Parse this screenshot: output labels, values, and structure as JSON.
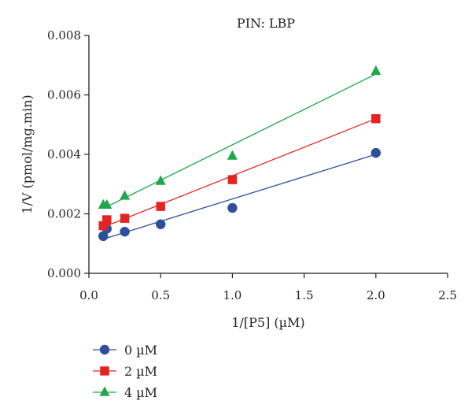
{
  "chart_data": {
    "type": "scatter",
    "title": "PIN: LBP",
    "xlabel": "1/[P5] (µM)",
    "ylabel": "1/V (pmol/mg.min)",
    "xlim": [
      0.0,
      2.5
    ],
    "ylim": [
      0.0,
      0.008
    ],
    "x_ticks": [
      "0.0",
      "0.5",
      "1.0",
      "1.5",
      "2.0",
      "2.5"
    ],
    "y_ticks": [
      "0.000",
      "0.002",
      "0.004",
      "0.006",
      "0.008"
    ],
    "grid": false,
    "legend_position": "bottom-left",
    "series": [
      {
        "name": "0 µM",
        "color": "#2e4f9e",
        "marker": "circle",
        "x": [
          0.1,
          0.125,
          0.25,
          0.5,
          1.0,
          2.0
        ],
        "y": [
          0.00125,
          0.0015,
          0.0014,
          0.00165,
          0.0022,
          0.00405
        ],
        "fit_line": [
          [
            0.1,
            0.00115
          ],
          [
            2.0,
            0.004
          ]
        ]
      },
      {
        "name": "2 µM",
        "color": "#e52421",
        "marker": "square",
        "x": [
          0.1,
          0.125,
          0.25,
          0.5,
          1.0,
          2.0
        ],
        "y": [
          0.0016,
          0.0018,
          0.00185,
          0.00225,
          0.00315,
          0.0052
        ],
        "fit_line": [
          [
            0.1,
            0.00155
          ],
          [
            2.0,
            0.0052
          ]
        ]
      },
      {
        "name": "4 µM",
        "color": "#1ea84a",
        "marker": "triangle",
        "x": [
          0.1,
          0.125,
          0.25,
          0.5,
          1.0,
          2.0
        ],
        "y": [
          0.0023,
          0.0023,
          0.0026,
          0.0031,
          0.00395,
          0.0068
        ],
        "fit_line": [
          [
            0.1,
            0.00218
          ],
          [
            2.0,
            0.0067
          ]
        ]
      }
    ]
  }
}
